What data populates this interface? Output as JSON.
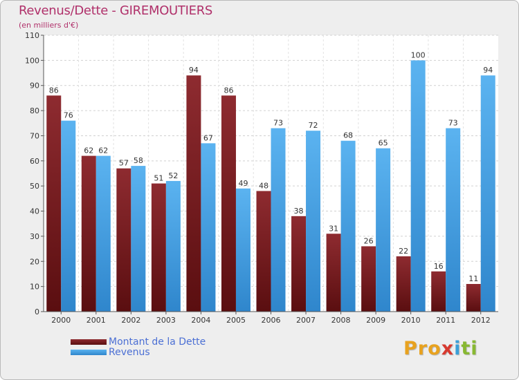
{
  "chart_data": {
    "type": "bar",
    "title": "Revenus/Dette - GIREMOUTIERS",
    "subtitle": "(en milliers d'€)",
    "categories": [
      "2000",
      "2001",
      "2002",
      "2003",
      "2004",
      "2005",
      "2006",
      "2007",
      "2008",
      "2009",
      "2010",
      "2011",
      "2012"
    ],
    "series": [
      {
        "name": "Montant de la Dette",
        "color": "#7b1a1e",
        "values": [
          86,
          62,
          57,
          51,
          94,
          86,
          48,
          38,
          31,
          26,
          22,
          16,
          11
        ]
      },
      {
        "name": "Revenus",
        "color": "#3f9fe3",
        "values": [
          76,
          62,
          58,
          52,
          67,
          49,
          73,
          72,
          68,
          65,
          100,
          73,
          94
        ]
      }
    ],
    "ylim": [
      0,
      110
    ],
    "yticks": [
      0,
      10,
      20,
      30,
      40,
      50,
      60,
      70,
      80,
      90,
      100,
      110
    ],
    "grid": true,
    "legend_position": "bottom-left"
  },
  "logo": {
    "letters": [
      {
        "char": "P",
        "color": "#e8a21f"
      },
      {
        "char": "r",
        "color": "#e8a21f"
      },
      {
        "char": "o",
        "color": "#e8a21f"
      },
      {
        "char": "x",
        "color": "#d7392f"
      },
      {
        "char": "i",
        "color": "#3b9fd8"
      },
      {
        "char": "t",
        "color": "#88b832"
      },
      {
        "char": "i",
        "color": "#88b832"
      }
    ]
  }
}
